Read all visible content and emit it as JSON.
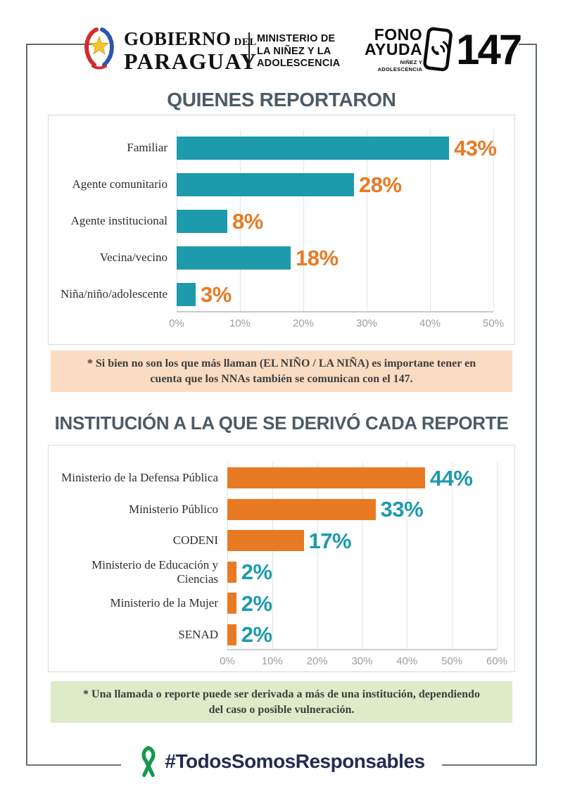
{
  "header": {
    "gov": {
      "word1": "GOBIERNO",
      "del": "DEL",
      "word2": "PARAGUAY",
      "ministry": "MINISTERIO DE\nLA NIÑEZ Y LA\nADOLESCENCIA"
    },
    "fono": {
      "main": "FONO\nAYUDA",
      "sub": "NIÑEZ Y\nADOLESCENCIA",
      "number": "147"
    }
  },
  "notes": {
    "note1": "* Si bien no son los que más llaman (EL NIÑO / LA NIÑA) es importane tener en cuenta que los NNAs también se comunican con el 147.",
    "note2": "* Una llamada o reporte puede ser derivada a más de una institución, dependiendo del caso o posible vulneración."
  },
  "footer": {
    "hashtag": "#TodosSomosResponsables"
  },
  "colors": {
    "teal": "#1e9aad",
    "orange": "#e87a24",
    "title_slate": "#4c5b66",
    "note1_bg": "#fadcc3",
    "note2_bg": "#ddebc8",
    "footer_navy": "#222c52",
    "ribbon_green": "#12994e"
  },
  "chart_data": [
    {
      "type": "bar",
      "orientation": "horizontal",
      "title": "QUIENES REPORTARON",
      "categories": [
        "Familiar",
        "Agente comunitario",
        "Agente institucional",
        "Vecina/vecino",
        "Niña/niño/adolescente"
      ],
      "values": [
        43,
        28,
        8,
        18,
        3
      ],
      "value_labels": [
        "43%",
        "28%",
        "8%",
        "18%",
        "3%"
      ],
      "xlim": [
        0,
        50
      ],
      "x_ticks": [
        "0%",
        "10%",
        "20%",
        "30%",
        "40%",
        "50%"
      ],
      "grid": true,
      "legend": false,
      "bar_color": "#1e9aad",
      "value_label_color": "#e87a24"
    },
    {
      "type": "bar",
      "orientation": "horizontal",
      "title": "INSTITUCIÓN A LA QUE SE DERIVÓ CADA REPORTE",
      "categories": [
        "Ministerio de la Defensa Pública",
        "Ministerio Público",
        "CODENI",
        "Ministerio de Educación y Ciencias",
        "Ministerio de la Mujer",
        "SENAD"
      ],
      "values": [
        44,
        33,
        17,
        2,
        2,
        2
      ],
      "value_labels": [
        "44%",
        "33%",
        "17%",
        "2%",
        "2%",
        "2%"
      ],
      "xlim": [
        0,
        60
      ],
      "x_ticks": [
        "0%",
        "10%",
        "20%",
        "30%",
        "40%",
        "50%",
        "60%"
      ],
      "grid": true,
      "legend": false,
      "bar_color": "#e87a24",
      "value_label_color": "#1e9aad"
    }
  ]
}
